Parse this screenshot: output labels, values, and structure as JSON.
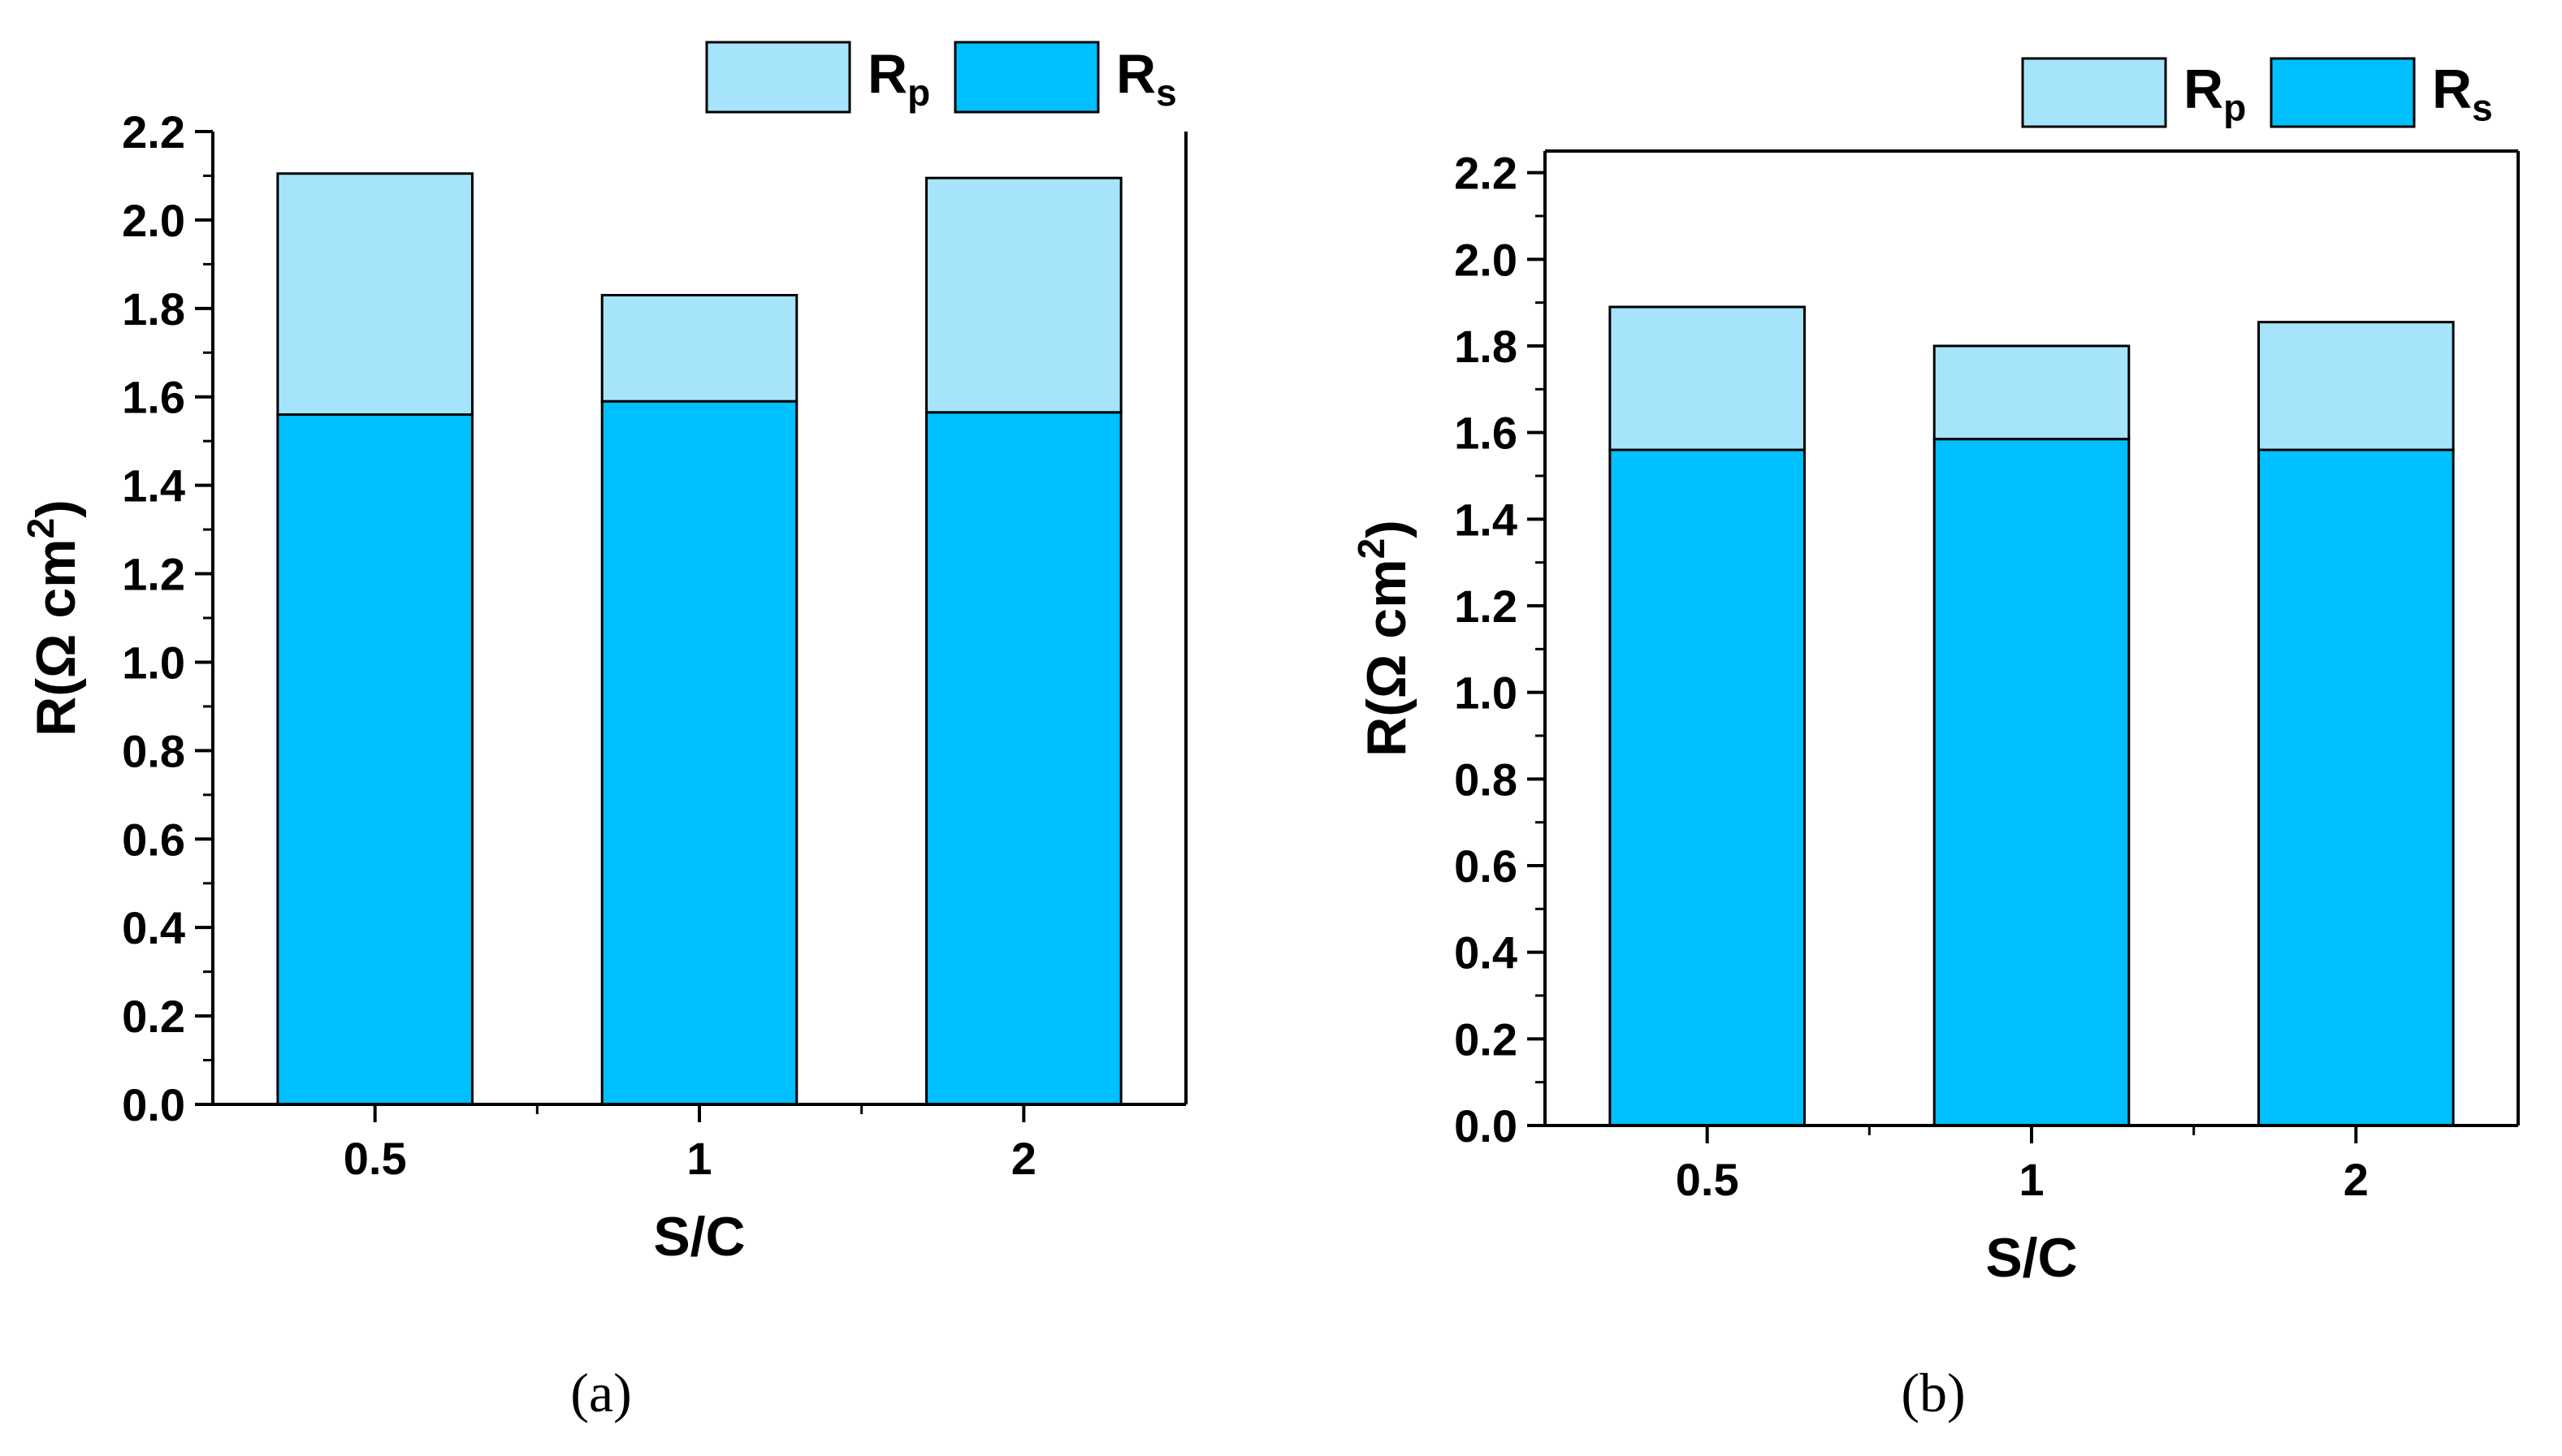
{
  "chart_data": [
    {
      "type": "bar",
      "stacked": true,
      "panel_label": "(a)",
      "categories": [
        "0.5",
        "1",
        "2"
      ],
      "series": [
        {
          "name": "Rs",
          "name_main": "R",
          "name_sub": "s",
          "color": "#00bfff",
          "values": [
            1.56,
            1.59,
            1.565
          ]
        },
        {
          "name": "Rp",
          "name_main": "R",
          "name_sub": "p",
          "color": "#a6e4fb",
          "values": [
            0.545,
            0.24,
            0.53
          ]
        }
      ],
      "xlabel": "S/C",
      "ylabel_prefix": "R(Ω cm",
      "ylabel_sup": "2",
      "ylabel_suffix": ")",
      "ylim": [
        0,
        2.2
      ],
      "yticks": [
        "0.0",
        "0.2",
        "0.4",
        "0.6",
        "0.8",
        "1.0",
        "1.2",
        "1.4",
        "1.6",
        "1.8",
        "2.0",
        "2.2"
      ],
      "legend_position": "top-right, outside"
    },
    {
      "type": "bar",
      "stacked": true,
      "panel_label": "(b)",
      "categories": [
        "0.5",
        "1",
        "2"
      ],
      "series": [
        {
          "name": "Rs",
          "name_main": "R",
          "name_sub": "s",
          "color": "#00bfff",
          "values": [
            1.56,
            1.585,
            1.56
          ]
        },
        {
          "name": "Rp",
          "name_main": "R",
          "name_sub": "p",
          "color": "#a6e4fb",
          "values": [
            0.33,
            0.215,
            0.295
          ]
        }
      ],
      "xlabel": "S/C",
      "ylabel_prefix": "R(Ω cm",
      "ylabel_sup": "2",
      "ylabel_suffix": ")",
      "ylim": [
        0,
        2.25
      ],
      "yticks": [
        "0.0",
        "0.2",
        "0.4",
        "0.6",
        "0.8",
        "1.0",
        "1.2",
        "1.4",
        "1.6",
        "1.8",
        "2.0",
        "2.2"
      ],
      "legend_position": "top-right, outside"
    }
  ]
}
